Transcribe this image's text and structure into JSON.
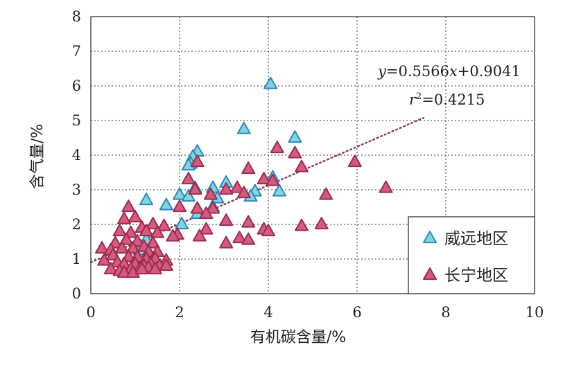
{
  "chart_data": {
    "type": "scatter",
    "xlabel": "有机碳含量/%",
    "ylabel": "含气量/%",
    "xlim": [
      0,
      10
    ],
    "ylim": [
      0,
      8
    ],
    "xticks": [
      0,
      2,
      4,
      6,
      8,
      10
    ],
    "yticks": [
      0,
      1,
      2,
      3,
      4,
      5,
      6,
      7,
      8
    ],
    "grid": "dotted",
    "legend_position": "bottom-right",
    "annotations": [
      {
        "id": "equation",
        "parts": [
          "y",
          "=0.5566",
          "x",
          "+0.9041"
        ]
      },
      {
        "id": "r2",
        "parts": [
          "r",
          "2",
          "=0.4215"
        ]
      }
    ],
    "trendline": {
      "style": "dotted",
      "color": "#8b3a56",
      "slope": 0.5566,
      "intercept": 0.9041,
      "x_range": [
        0,
        7.5
      ]
    },
    "series": [
      {
        "name": "威远地区",
        "fill": "#7fd6dc",
        "stroke": "#2e86c1",
        "points": [
          [
            4.05,
            6.05
          ],
          [
            3.45,
            4.75
          ],
          [
            4.6,
            4.5
          ],
          [
            2.4,
            4.1
          ],
          [
            2.3,
            3.95
          ],
          [
            2.25,
            3.75
          ],
          [
            2.2,
            3.7
          ],
          [
            4.1,
            3.35
          ],
          [
            3.05,
            3.2
          ],
          [
            2.75,
            3.05
          ],
          [
            2.35,
            3.05
          ],
          [
            3.7,
            2.95
          ],
          [
            4.25,
            2.95
          ],
          [
            2.0,
            2.85
          ],
          [
            2.2,
            2.8
          ],
          [
            3.6,
            2.8
          ],
          [
            2.85,
            2.75
          ],
          [
            1.25,
            2.7
          ],
          [
            1.7,
            2.55
          ],
          [
            2.75,
            2.5
          ],
          [
            2.4,
            2.3
          ],
          [
            2.05,
            2.0
          ],
          [
            1.25,
            1.55
          ],
          [
            1.1,
            1.25
          ]
        ]
      },
      {
        "name": "长宁地区",
        "fill": "#d65a80",
        "stroke": "#9c2c4c",
        "points": [
          [
            4.2,
            4.2
          ],
          [
            4.6,
            4.05
          ],
          [
            2.4,
            3.8
          ],
          [
            5.95,
            3.8
          ],
          [
            4.75,
            3.65
          ],
          [
            3.55,
            3.6
          ],
          [
            3.9,
            3.3
          ],
          [
            4.1,
            3.25
          ],
          [
            2.2,
            3.3
          ],
          [
            3.3,
            3.05
          ],
          [
            6.65,
            3.05
          ],
          [
            3.05,
            3.0
          ],
          [
            2.35,
            3.0
          ],
          [
            3.45,
            2.9
          ],
          [
            2.7,
            2.85
          ],
          [
            5.3,
            2.85
          ],
          [
            0.85,
            2.5
          ],
          [
            2.0,
            2.5
          ],
          [
            2.4,
            2.45
          ],
          [
            2.75,
            2.45
          ],
          [
            2.6,
            2.3
          ],
          [
            1.0,
            2.2
          ],
          [
            0.75,
            2.15
          ],
          [
            3.05,
            2.1
          ],
          [
            3.55,
            2.05
          ],
          [
            1.65,
            1.95
          ],
          [
            4.75,
            1.95
          ],
          [
            5.2,
            2.0
          ],
          [
            1.4,
            2.0
          ],
          [
            1.15,
            1.9
          ],
          [
            3.9,
            1.85
          ],
          [
            4.0,
            1.8
          ],
          [
            2.6,
            1.85
          ],
          [
            0.65,
            1.8
          ],
          [
            0.9,
            1.75
          ],
          [
            1.25,
            1.8
          ],
          [
            1.5,
            1.75
          ],
          [
            1.95,
            1.7
          ],
          [
            1.85,
            1.65
          ],
          [
            2.45,
            1.65
          ],
          [
            3.35,
            1.6
          ],
          [
            3.55,
            1.55
          ],
          [
            0.8,
            1.55
          ],
          [
            1.05,
            1.5
          ],
          [
            1.4,
            1.45
          ],
          [
            0.55,
            1.45
          ],
          [
            3.05,
            1.45
          ],
          [
            0.25,
            1.3
          ],
          [
            0.45,
            1.25
          ],
          [
            0.7,
            1.3
          ],
          [
            0.95,
            1.3
          ],
          [
            1.2,
            1.35
          ],
          [
            1.3,
            1.2
          ],
          [
            1.5,
            1.2
          ],
          [
            0.5,
            1.1
          ],
          [
            0.85,
            1.05
          ],
          [
            1.05,
            1.05
          ],
          [
            1.25,
            1.0
          ],
          [
            1.45,
            1.0
          ],
          [
            1.7,
            0.95
          ],
          [
            0.3,
            0.95
          ],
          [
            0.6,
            0.9
          ],
          [
            0.75,
            0.85
          ],
          [
            1.0,
            0.85
          ],
          [
            1.2,
            0.8
          ],
          [
            1.35,
            0.85
          ],
          [
            1.55,
            0.8
          ],
          [
            1.7,
            0.8
          ],
          [
            0.45,
            0.7
          ],
          [
            0.65,
            0.65
          ],
          [
            0.9,
            0.7
          ],
          [
            1.1,
            0.7
          ],
          [
            1.3,
            0.75
          ],
          [
            1.45,
            0.7
          ],
          [
            0.75,
            0.6
          ],
          [
            0.95,
            0.6
          ],
          [
            1.15,
            0.7
          ]
        ]
      }
    ]
  }
}
